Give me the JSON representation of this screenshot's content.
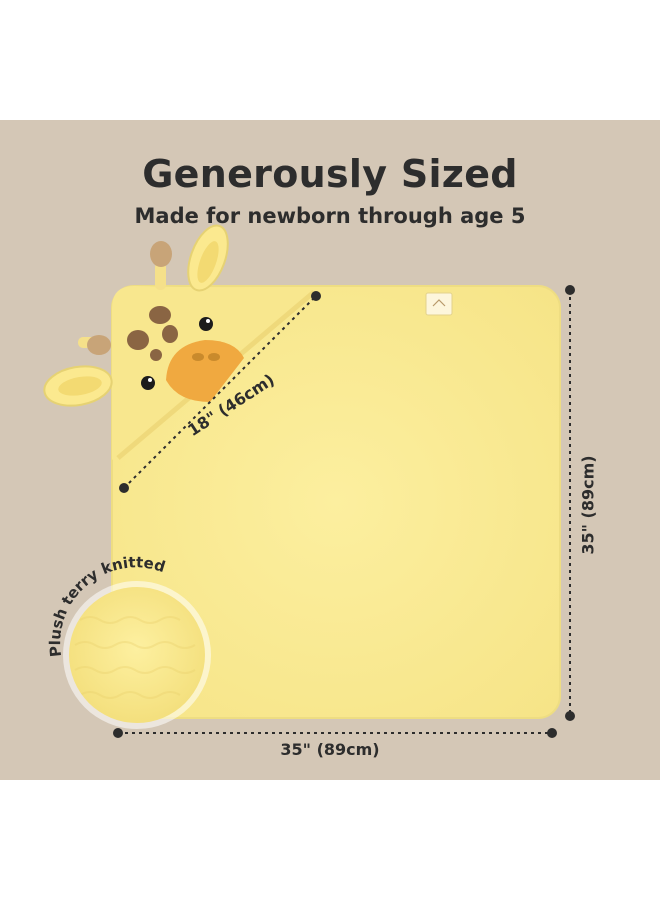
{
  "headline": "Generously Sized",
  "subheadline": "Made for newborn through age 5",
  "dimensions": {
    "hood_diagonal": "18\" (46cm)",
    "height": "35\" (89cm)",
    "width": "35\" (89cm)"
  },
  "callout": {
    "label": "Plush terry knitted"
  },
  "colors": {
    "background": "#d4c7b6",
    "towel": "#faeb96",
    "giraffe_spots": "#8a6543",
    "face_patch": "#f0a940"
  }
}
